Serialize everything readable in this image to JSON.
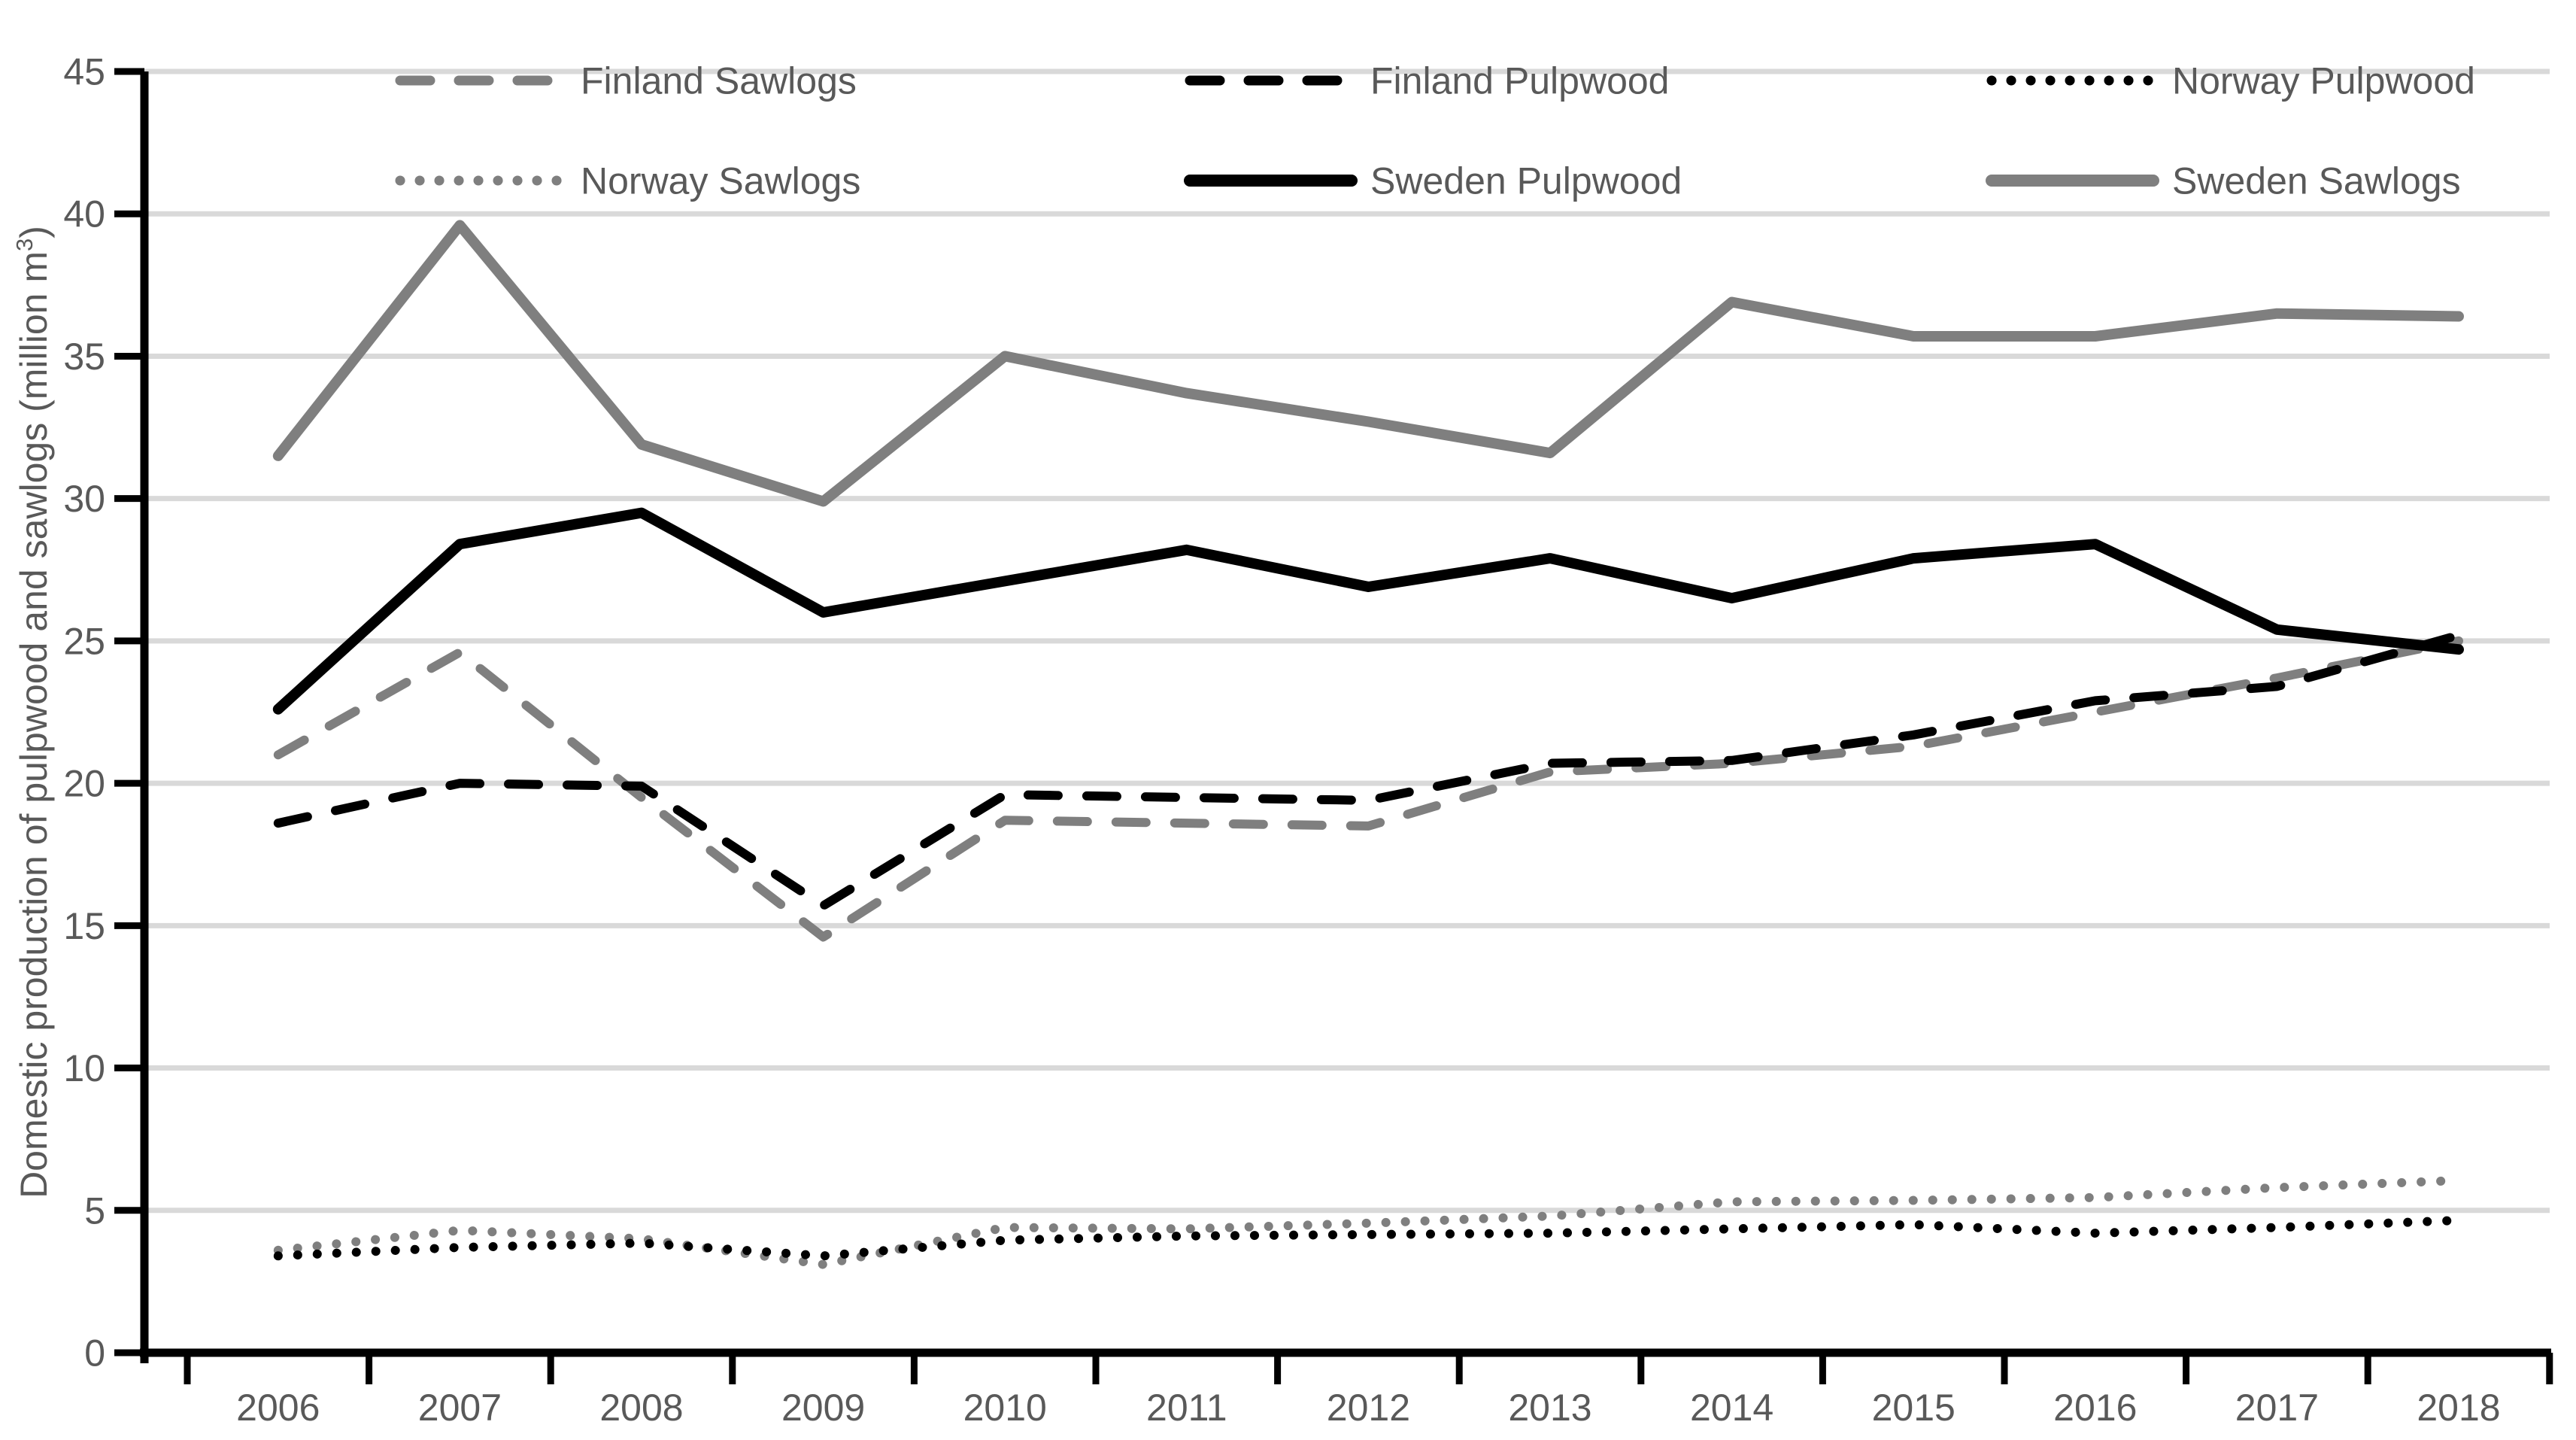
{
  "chart_data": {
    "type": "line",
    "title": "",
    "xlabel": "",
    "ylabel_parts": [
      "Domestic production of pulpwood and sawlogs (million m",
      "3",
      ")"
    ],
    "ylabel_plain": "Domestic production of pulpwood and sawlogs (million m³)",
    "x": [
      2006,
      2007,
      2008,
      2009,
      2010,
      2011,
      2012,
      2013,
      2014,
      2015,
      2016,
      2017,
      2018
    ],
    "ylim": [
      0,
      45
    ],
    "yticks": [
      0,
      5,
      10,
      15,
      20,
      25,
      30,
      35,
      40,
      45
    ],
    "grid": "horizontal",
    "legend_position": "top",
    "colors": {
      "gray_series": "#7f7f7f",
      "black_series": "#000000",
      "gridline": "#d9d9d9",
      "axis": "#000000",
      "label_text": "#595959",
      "background": "#ffffff"
    },
    "series": [
      {
        "name": "Finland Sawlogs",
        "slug": "finland-sawlogs",
        "color": "#7f7f7f",
        "line_style": "dashed",
        "values": [
          21.0,
          24.6,
          19.5,
          14.6,
          18.7,
          18.6,
          18.5,
          20.4,
          20.7,
          21.3,
          22.5,
          23.7,
          25.0
        ]
      },
      {
        "name": "Norway Sawlogs",
        "slug": "norway-sawlogs",
        "color": "#7f7f7f",
        "line_style": "dotted",
        "values": [
          3.6,
          4.3,
          4.0,
          3.1,
          4.4,
          4.35,
          4.55,
          4.8,
          5.3,
          5.35,
          5.45,
          5.8,
          6.05
        ]
      },
      {
        "name": "Finland Pulpwood",
        "slug": "finland-pulpwood",
        "color": "#000000",
        "line_style": "dashed",
        "values": [
          18.6,
          20.0,
          19.9,
          15.7,
          19.6,
          19.5,
          19.4,
          20.7,
          20.8,
          21.7,
          22.9,
          23.4,
          25.2
        ]
      },
      {
        "name": "Sweden Pulpwood",
        "slug": "sweden-pulpwood",
        "color": "#000000",
        "line_style": "solid",
        "values": [
          22.6,
          28.4,
          29.5,
          26.0,
          27.1,
          28.2,
          26.9,
          27.9,
          26.5,
          27.9,
          28.4,
          25.4,
          24.7
        ]
      },
      {
        "name": "Norway Pulpwood",
        "slug": "norway-pulpwood",
        "color": "#000000",
        "line_style": "dotted",
        "values": [
          3.4,
          3.7,
          3.85,
          3.4,
          3.95,
          4.1,
          4.15,
          4.2,
          4.35,
          4.5,
          4.2,
          4.4,
          4.65
        ]
      },
      {
        "name": "Sweden Sawlogs",
        "slug": "sweden-sawlogs",
        "color": "#7f7f7f",
        "line_style": "solid",
        "values": [
          31.5,
          39.6,
          31.9,
          29.9,
          35.0,
          33.7,
          32.7,
          31.6,
          36.9,
          35.7,
          35.7,
          36.5,
          36.4
        ]
      }
    ],
    "legend_order": [
      "finland-sawlogs",
      "finland-pulpwood",
      "norway-pulpwood",
      "norway-sawlogs",
      "sweden-pulpwood",
      "sweden-sawlogs"
    ]
  }
}
